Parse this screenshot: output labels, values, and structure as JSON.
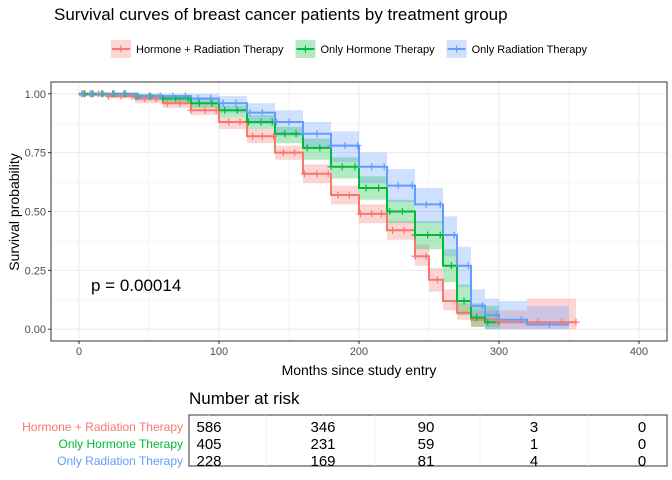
{
  "chart_data": {
    "type": "line",
    "title": "Survival curves of breast cancer patients by treatment group",
    "xlabel": "Months since study entry",
    "ylabel": "Survival probability",
    "xlim": [
      -20,
      420
    ],
    "ylim": [
      -0.05,
      1.05
    ],
    "xticks": [
      0,
      100,
      200,
      300,
      400
    ],
    "yticks": [
      0.0,
      0.25,
      0.5,
      0.75,
      1.0
    ],
    "ytick_labels": [
      "0.00",
      "0.25",
      "0.50",
      "0.75",
      "1.00"
    ],
    "grid": true,
    "legend_position": "top",
    "annotation": "p = 0.00014",
    "series": [
      {
        "name": "Hormone + Radiation Therapy",
        "color": "#F8766D",
        "band": "#F8766D",
        "points": [
          [
            0,
            1.0
          ],
          [
            20,
            0.99
          ],
          [
            40,
            0.98
          ],
          [
            60,
            0.96
          ],
          [
            80,
            0.93
          ],
          [
            100,
            0.88
          ],
          [
            120,
            0.82
          ],
          [
            140,
            0.75
          ],
          [
            160,
            0.66
          ],
          [
            180,
            0.57
          ],
          [
            200,
            0.49
          ],
          [
            220,
            0.42
          ],
          [
            240,
            0.31
          ],
          [
            250,
            0.21
          ],
          [
            260,
            0.12
          ],
          [
            270,
            0.07
          ],
          [
            280,
            0.04
          ],
          [
            300,
            0.03
          ],
          [
            320,
            0.03
          ],
          [
            355,
            0.03
          ]
        ],
        "censor_x": [
          3,
          8,
          14,
          21,
          30,
          38,
          47,
          55,
          63,
          72,
          80,
          90,
          98,
          107,
          115,
          124,
          131,
          139,
          146,
          154,
          161,
          170,
          178,
          185,
          193,
          201,
          209,
          216,
          224,
          232,
          240,
          248,
          256,
          300,
          328,
          345,
          355
        ],
        "ci_upper": [
          [
            0,
            1.0
          ],
          [
            20,
            1.0
          ],
          [
            40,
            0.99
          ],
          [
            60,
            0.98
          ],
          [
            80,
            0.95
          ],
          [
            100,
            0.9
          ],
          [
            120,
            0.85
          ],
          [
            140,
            0.78
          ],
          [
            160,
            0.7
          ],
          [
            180,
            0.61
          ],
          [
            200,
            0.53
          ],
          [
            220,
            0.46
          ],
          [
            240,
            0.36
          ],
          [
            250,
            0.26
          ],
          [
            260,
            0.17
          ],
          [
            270,
            0.11
          ],
          [
            280,
            0.08
          ],
          [
            300,
            0.08
          ],
          [
            320,
            0.13
          ],
          [
            355,
            0.13
          ]
        ],
        "ci_lower": [
          [
            0,
            0.99
          ],
          [
            20,
            0.98
          ],
          [
            40,
            0.96
          ],
          [
            60,
            0.94
          ],
          [
            80,
            0.91
          ],
          [
            100,
            0.85
          ],
          [
            120,
            0.79
          ],
          [
            140,
            0.72
          ],
          [
            160,
            0.62
          ],
          [
            180,
            0.53
          ],
          [
            200,
            0.45
          ],
          [
            220,
            0.38
          ],
          [
            240,
            0.27
          ],
          [
            250,
            0.16
          ],
          [
            260,
            0.08
          ],
          [
            270,
            0.04
          ],
          [
            280,
            0.01
          ],
          [
            300,
            0.0
          ],
          [
            320,
            0.0
          ],
          [
            355,
            0.0
          ]
        ]
      },
      {
        "name": "Only Hormone Therapy",
        "color": "#00BA38",
        "band": "#00BA38",
        "points": [
          [
            0,
            1.0
          ],
          [
            20,
            1.0
          ],
          [
            40,
            0.99
          ],
          [
            60,
            0.98
          ],
          [
            80,
            0.96
          ],
          [
            100,
            0.93
          ],
          [
            120,
            0.88
          ],
          [
            140,
            0.83
          ],
          [
            160,
            0.77
          ],
          [
            180,
            0.69
          ],
          [
            200,
            0.6
          ],
          [
            220,
            0.5
          ],
          [
            240,
            0.4
          ],
          [
            260,
            0.27
          ],
          [
            270,
            0.12
          ],
          [
            280,
            0.05
          ],
          [
            290,
            0.03
          ],
          [
            300,
            0.02
          ]
        ],
        "censor_x": [
          4,
          10,
          17,
          25,
          33,
          42,
          51,
          60,
          69,
          78,
          86,
          95,
          104,
          113,
          121,
          130,
          138,
          147,
          155,
          163,
          172,
          180,
          188,
          197,
          205,
          214,
          222,
          231,
          240,
          249,
          258,
          266,
          275,
          284,
          292
        ],
        "ci_upper": [
          [
            0,
            1.0
          ],
          [
            20,
            1.0
          ],
          [
            40,
            1.0
          ],
          [
            60,
            0.99
          ],
          [
            80,
            0.98
          ],
          [
            100,
            0.95
          ],
          [
            120,
            0.91
          ],
          [
            140,
            0.86
          ],
          [
            160,
            0.81
          ],
          [
            180,
            0.73
          ],
          [
            200,
            0.65
          ],
          [
            220,
            0.55
          ],
          [
            240,
            0.46
          ],
          [
            260,
            0.34
          ],
          [
            270,
            0.19
          ],
          [
            280,
            0.11
          ],
          [
            290,
            0.1
          ],
          [
            300,
            0.09
          ]
        ],
        "ci_lower": [
          [
            0,
            0.99
          ],
          [
            20,
            0.99
          ],
          [
            40,
            0.98
          ],
          [
            60,
            0.96
          ],
          [
            80,
            0.94
          ],
          [
            100,
            0.9
          ],
          [
            120,
            0.85
          ],
          [
            140,
            0.79
          ],
          [
            160,
            0.72
          ],
          [
            180,
            0.64
          ],
          [
            200,
            0.55
          ],
          [
            220,
            0.45
          ],
          [
            240,
            0.34
          ],
          [
            260,
            0.2
          ],
          [
            270,
            0.06
          ],
          [
            280,
            0.01
          ],
          [
            290,
            0.0
          ],
          [
            300,
            0.0
          ]
        ]
      },
      {
        "name": "Only Radiation Therapy",
        "color": "#619CFF",
        "band": "#619CFF",
        "points": [
          [
            0,
            1.0
          ],
          [
            20,
            1.0
          ],
          [
            40,
            0.99
          ],
          [
            60,
            0.99
          ],
          [
            80,
            0.98
          ],
          [
            100,
            0.96
          ],
          [
            120,
            0.92
          ],
          [
            140,
            0.88
          ],
          [
            160,
            0.83
          ],
          [
            180,
            0.78
          ],
          [
            200,
            0.69
          ],
          [
            220,
            0.61
          ],
          [
            240,
            0.53
          ],
          [
            260,
            0.4
          ],
          [
            270,
            0.27
          ],
          [
            280,
            0.1
          ],
          [
            290,
            0.06
          ],
          [
            300,
            0.04
          ],
          [
            320,
            0.02
          ],
          [
            350,
            0.02
          ]
        ],
        "censor_x": [
          2,
          9,
          16,
          24,
          32,
          41,
          50,
          58,
          67,
          76,
          85,
          94,
          103,
          112,
          122,
          131,
          141,
          150,
          160,
          170,
          180,
          190,
          199,
          209,
          218,
          228,
          238,
          248,
          258,
          268,
          278,
          288,
          298,
          316,
          336
        ],
        "ci_upper": [
          [
            0,
            1.0
          ],
          [
            20,
            1.0
          ],
          [
            40,
            1.0
          ],
          [
            60,
            1.0
          ],
          [
            80,
            1.0
          ],
          [
            100,
            0.99
          ],
          [
            120,
            0.96
          ],
          [
            140,
            0.93
          ],
          [
            160,
            0.88
          ],
          [
            180,
            0.84
          ],
          [
            200,
            0.75
          ],
          [
            220,
            0.68
          ],
          [
            240,
            0.6
          ],
          [
            260,
            0.48
          ],
          [
            270,
            0.35
          ],
          [
            280,
            0.17
          ],
          [
            290,
            0.13
          ],
          [
            300,
            0.12
          ],
          [
            320,
            0.1
          ],
          [
            350,
            0.1
          ]
        ],
        "ci_lower": [
          [
            0,
            0.99
          ],
          [
            20,
            0.99
          ],
          [
            40,
            0.97
          ],
          [
            60,
            0.97
          ],
          [
            80,
            0.95
          ],
          [
            100,
            0.92
          ],
          [
            120,
            0.87
          ],
          [
            140,
            0.82
          ],
          [
            160,
            0.77
          ],
          [
            180,
            0.71
          ],
          [
            200,
            0.62
          ],
          [
            220,
            0.54
          ],
          [
            240,
            0.45
          ],
          [
            260,
            0.31
          ],
          [
            270,
            0.18
          ],
          [
            280,
            0.04
          ],
          [
            290,
            0.0
          ],
          [
            300,
            0.0
          ],
          [
            320,
            0.0
          ],
          [
            350,
            0.0
          ]
        ]
      }
    ]
  },
  "risk_table": {
    "title": "Number at risk",
    "times": [
      0,
      100,
      200,
      300,
      400
    ],
    "rows": [
      {
        "label": "Hormone + Radiation Therapy",
        "color": "#F8766D",
        "counts": [
          "586",
          "346",
          "90",
          "3",
          "0"
        ]
      },
      {
        "label": "Only Hormone Therapy",
        "color": "#00BA38",
        "counts": [
          "405",
          "231",
          "59",
          "1",
          "0"
        ]
      },
      {
        "label": "Only Radiation Therapy",
        "color": "#619CFF",
        "counts": [
          "228",
          "169",
          "81",
          "4",
          "0"
        ]
      }
    ]
  }
}
